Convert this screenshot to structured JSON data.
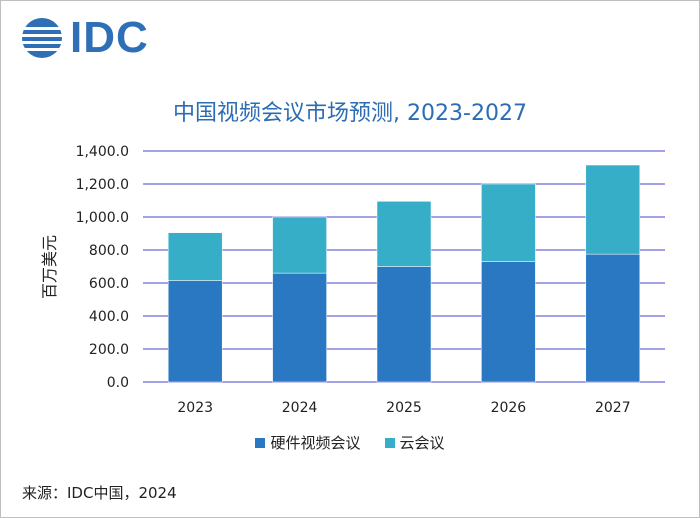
{
  "logo": {
    "text": "IDC"
  },
  "chart_data": {
    "type": "bar",
    "stacked": true,
    "title": "中国视频会议市场预测, 2023-2027",
    "ylabel": "百万美元",
    "xlabel": "",
    "categories": [
      "2023",
      "2024",
      "2025",
      "2026",
      "2027"
    ],
    "series": [
      {
        "name": "硬件视频会议",
        "color": "#2b78c2",
        "values": [
          615,
          660,
          700,
          730,
          775
        ]
      },
      {
        "name": "云会议",
        "color": "#37aec8",
        "values": [
          290,
          340,
          395,
          470,
          540
        ]
      }
    ],
    "ylim": [
      0,
      1400
    ],
    "yticks": [
      "0.0",
      "200.0",
      "400.0",
      "600.0",
      "800.0",
      "1,000.0",
      "1,200.0",
      "1,400.0"
    ],
    "grid": true,
    "legend_position": "bottom"
  },
  "source": "来源：IDC中国，2024"
}
